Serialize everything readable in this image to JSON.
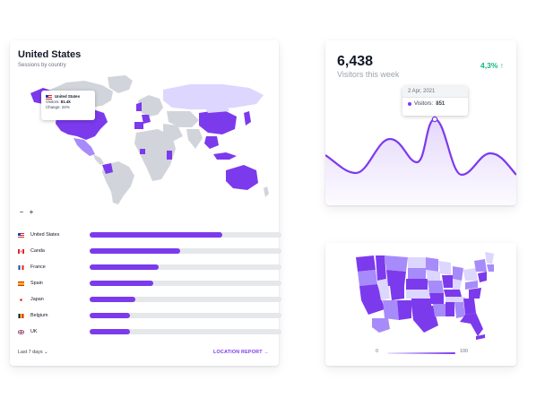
{
  "colors": {
    "accent": "#7c3aed",
    "accent_mid": "#a78bfa",
    "accent_light": "#ddd6fe",
    "map_grey": "#d1d5db",
    "track": "#e5e7eb",
    "positive": "#10b981"
  },
  "location_card": {
    "title": "United States",
    "subtitle": "Sessions by country",
    "tooltip": {
      "country": "United States",
      "visitors_label": "Visitors:",
      "visitors_value": "81.4k",
      "change_label": "Change:",
      "change_value": "24%"
    },
    "zoom_out_label": "−",
    "zoom_in_label": "+",
    "countries": [
      {
        "name": "United States",
        "flag": "us-flag-icon",
        "share": 0.69
      },
      {
        "name": "Canda",
        "flag": "canada-flag-icon",
        "share": 0.47
      },
      {
        "name": "France",
        "flag": "france-flag-icon",
        "share": 0.36
      },
      {
        "name": "Spain",
        "flag": "spain-flag-icon",
        "share": 0.33
      },
      {
        "name": "Japan",
        "flag": "japan-flag-icon",
        "share": 0.24
      },
      {
        "name": "Belgium",
        "flag": "belgium-flag-icon",
        "share": 0.21
      },
      {
        "name": "UK",
        "flag": "uk-flag-icon",
        "share": 0.21
      }
    ],
    "period_label": "Last 7 days",
    "period_icon": "chevron-down-icon",
    "report_label": "LOCATION REPORT",
    "report_icon": "arrow-right-icon"
  },
  "visitors_card": {
    "value": "6,438",
    "label": "Visitors this week",
    "change": "4,3%",
    "change_icon": "arrow-up-icon",
    "tooltip": {
      "date": "2 Apr, 2021",
      "series_label": "Visitors:",
      "series_value": "851"
    }
  },
  "us_map_card": {
    "scale_min": "0",
    "scale_max": "100"
  }
}
